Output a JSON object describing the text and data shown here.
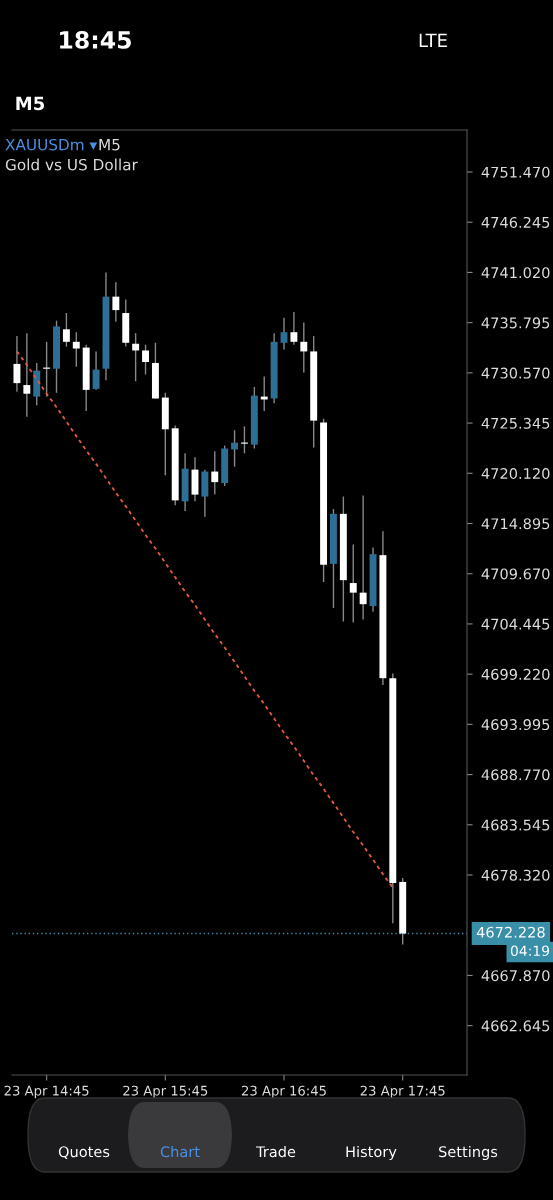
{
  "chart_data": {
    "type": "candlestick",
    "title": "XAUUSDm ▾",
    "subtitle": "Gold vs US Dollar",
    "annotations": [
      "18:45",
      "LTE",
      "M5",
      "M5",
      "04:19",
      "Quotes",
      "Chart",
      "Trade",
      "History",
      "Settings"
    ],
    "categories": [
      null,
      null,
      null,
      "23 Apr 14:45",
      null,
      null,
      null,
      null,
      null,
      null,
      null,
      null,
      null,
      null,
      null,
      "23 Apr 15:45",
      null,
      null,
      null,
      null,
      null,
      null,
      null,
      null,
      null,
      null,
      null,
      "23 Apr 16:45",
      null,
      null,
      null,
      null,
      null,
      null,
      null,
      null,
      null,
      null,
      null,
      "23 Apr 17:45",
      null,
      null,
      null,
      null,
      null,
      null
    ],
    "ohlc": [
      [
        4731.5,
        4734.4,
        4728.6,
        4729.5
      ],
      [
        4729.3,
        4734.7,
        4726.0,
        4728.4
      ],
      [
        4728.1,
        4731.6,
        4727.2,
        4730.8
      ],
      [
        4731.0,
        4733.8,
        4728.1,
        4731.0
      ],
      [
        4731.0,
        4736.0,
        4728.5,
        4735.4
      ],
      [
        4735.1,
        4736.8,
        4733.3,
        4733.8
      ],
      [
        4733.8,
        4734.8,
        4731.2,
        4733.1
      ],
      [
        4733.2,
        4733.5,
        4726.6,
        4728.8
      ],
      [
        4728.9,
        4732.8,
        4728.8,
        4730.9
      ],
      [
        4731.0,
        4741.0,
        4729.8,
        4738.5
      ],
      [
        4738.5,
        4740.0,
        4735.9,
        4737.1
      ],
      [
        4736.8,
        4738.2,
        4733.3,
        4733.7
      ],
      [
        4733.6,
        4734.7,
        4729.7,
        4732.9
      ],
      [
        4732.9,
        4733.5,
        4730.4,
        4731.7
      ],
      [
        4731.6,
        4733.7,
        4727.9,
        4727.9
      ],
      [
        4728.0,
        4728.5,
        4719.9,
        4724.7
      ],
      [
        4724.8,
        4725.1,
        4716.8,
        4717.3
      ],
      [
        4717.2,
        4722.2,
        4716.2,
        4720.6
      ],
      [
        4720.5,
        4721.8,
        4717.2,
        4717.9
      ],
      [
        4717.7,
        4720.5,
        4715.6,
        4720.3
      ],
      [
        4720.3,
        4722.4,
        4717.9,
        4719.2
      ],
      [
        4719.1,
        4723.0,
        4718.8,
        4722.7
      ],
      [
        4722.6,
        4724.6,
        4720.8,
        4723.3
      ],
      [
        4723.2,
        4725.0,
        4722.2,
        4723.2
      ],
      [
        4723.1,
        4729.1,
        4722.7,
        4728.2
      ],
      [
        4728.1,
        4730.2,
        4726.6,
        4727.8
      ],
      [
        4727.9,
        4734.7,
        4727.4,
        4733.8
      ],
      [
        4733.7,
        4736.3,
        4733.0,
        4734.8
      ],
      [
        4734.8,
        4736.9,
        4733.5,
        4733.8
      ],
      [
        4733.8,
        4735.8,
        4730.6,
        4732.8
      ],
      [
        4732.8,
        4734.4,
        4722.8,
        4725.6
      ],
      [
        4725.4,
        4725.8,
        4708.8,
        4710.6
      ],
      [
        4710.7,
        4716.4,
        4706.1,
        4715.9
      ],
      [
        4715.9,
        4717.7,
        4704.7,
        4709.0
      ],
      [
        4708.7,
        4712.7,
        4704.6,
        4707.7
      ],
      [
        4707.7,
        4717.8,
        4704.9,
        4706.5
      ],
      [
        4706.3,
        4712.4,
        4705.7,
        4711.7
      ],
      [
        4711.6,
        4714.1,
        4698.1,
        4698.8
      ],
      [
        4698.8,
        4699.3,
        4673.3,
        4677.5
      ],
      [
        4677.6,
        4678.0,
        4671.1,
        4672.228
      ],
      null,
      null,
      null,
      null,
      null,
      null
    ],
    "colors": [
      "#ffffff",
      "#ffffff",
      "#2e6f96",
      "#ffffff",
      "#2e6f96",
      "#ffffff",
      "#ffffff",
      "#ffffff",
      "#2e6f96",
      "#2e6f96",
      "#ffffff",
      "#ffffff",
      "#ffffff",
      "#ffffff",
      "#ffffff",
      "#ffffff",
      "#ffffff",
      "#2e6f96",
      "#ffffff",
      "#2e6f96",
      "#ffffff",
      "#2e6f96",
      "#2e6f96",
      "#ffffff",
      "#2e6f96",
      "#ffffff",
      "#2e6f96",
      "#2e6f96",
      "#ffffff",
      "#ffffff",
      "#ffffff",
      "#ffffff",
      "#2e6f96",
      "#ffffff",
      "#ffffff",
      "#ffffff",
      "#2e6f96",
      "#ffffff",
      "#ffffff",
      "#ffffff",
      null,
      null,
      null,
      null,
      null,
      null
    ],
    "series": [
      {
        "type": "line",
        "values": [
          4732.8,
          4731.4,
          4729.9,
          4728.4,
          4727.0,
          4725.5,
          4724.0,
          4722.5,
          4721.1,
          4719.6,
          4718.1,
          4716.7,
          4715.2,
          4713.7,
          4712.3,
          4710.8,
          4709.3,
          4707.8,
          4706.4,
          4704.9,
          4703.4,
          4702.0,
          4700.5,
          4699.0,
          4697.5,
          4696.1,
          4694.6,
          4693.1,
          4691.7,
          4690.2,
          4688.7,
          4687.3,
          4685.8,
          4684.3,
          4682.8,
          4681.4,
          4679.9,
          4678.4,
          4677.0,
          null,
          null,
          null,
          null,
          null,
          null,
          null
        ],
        "color": "#e25a44",
        "line_style": "dashed"
      }
    ],
    "ref_lines": [
      {
        "axis": "y",
        "value": 4672.228,
        "label": "4672.228",
        "color": "#3a8fa8",
        "line_style": "dotted"
      }
    ],
    "ylim": [
      4657.51,
      4755.84
    ],
    "yticks": [
      {
        "value": 4751.47,
        "label": "4751.470"
      },
      {
        "value": 4746.245,
        "label": "4746.245"
      },
      {
        "value": 4741.02,
        "label": "4741.020"
      },
      {
        "value": 4735.795,
        "label": "4735.795"
      },
      {
        "value": 4730.57,
        "label": "4730.570"
      },
      {
        "value": 4725.345,
        "label": "4725.345"
      },
      {
        "value": 4720.12,
        "label": "4720.120"
      },
      {
        "value": 4714.895,
        "label": "4714.895"
      },
      {
        "value": 4709.67,
        "label": "4709.670"
      },
      {
        "value": 4704.445,
        "label": "4704.445"
      },
      {
        "value": 4699.22,
        "label": "4699.220"
      },
      {
        "value": 4693.995,
        "label": "4693.995"
      },
      {
        "value": 4688.77,
        "label": "4688.770"
      },
      {
        "value": 4683.545,
        "label": "4683.545"
      },
      {
        "value": 4678.32,
        "label": "4678.320"
      },
      {
        "value": 4667.87,
        "label": "4667.870"
      },
      {
        "value": 4662.645,
        "label": "4662.645"
      }
    ],
    "grid": false
  }
}
